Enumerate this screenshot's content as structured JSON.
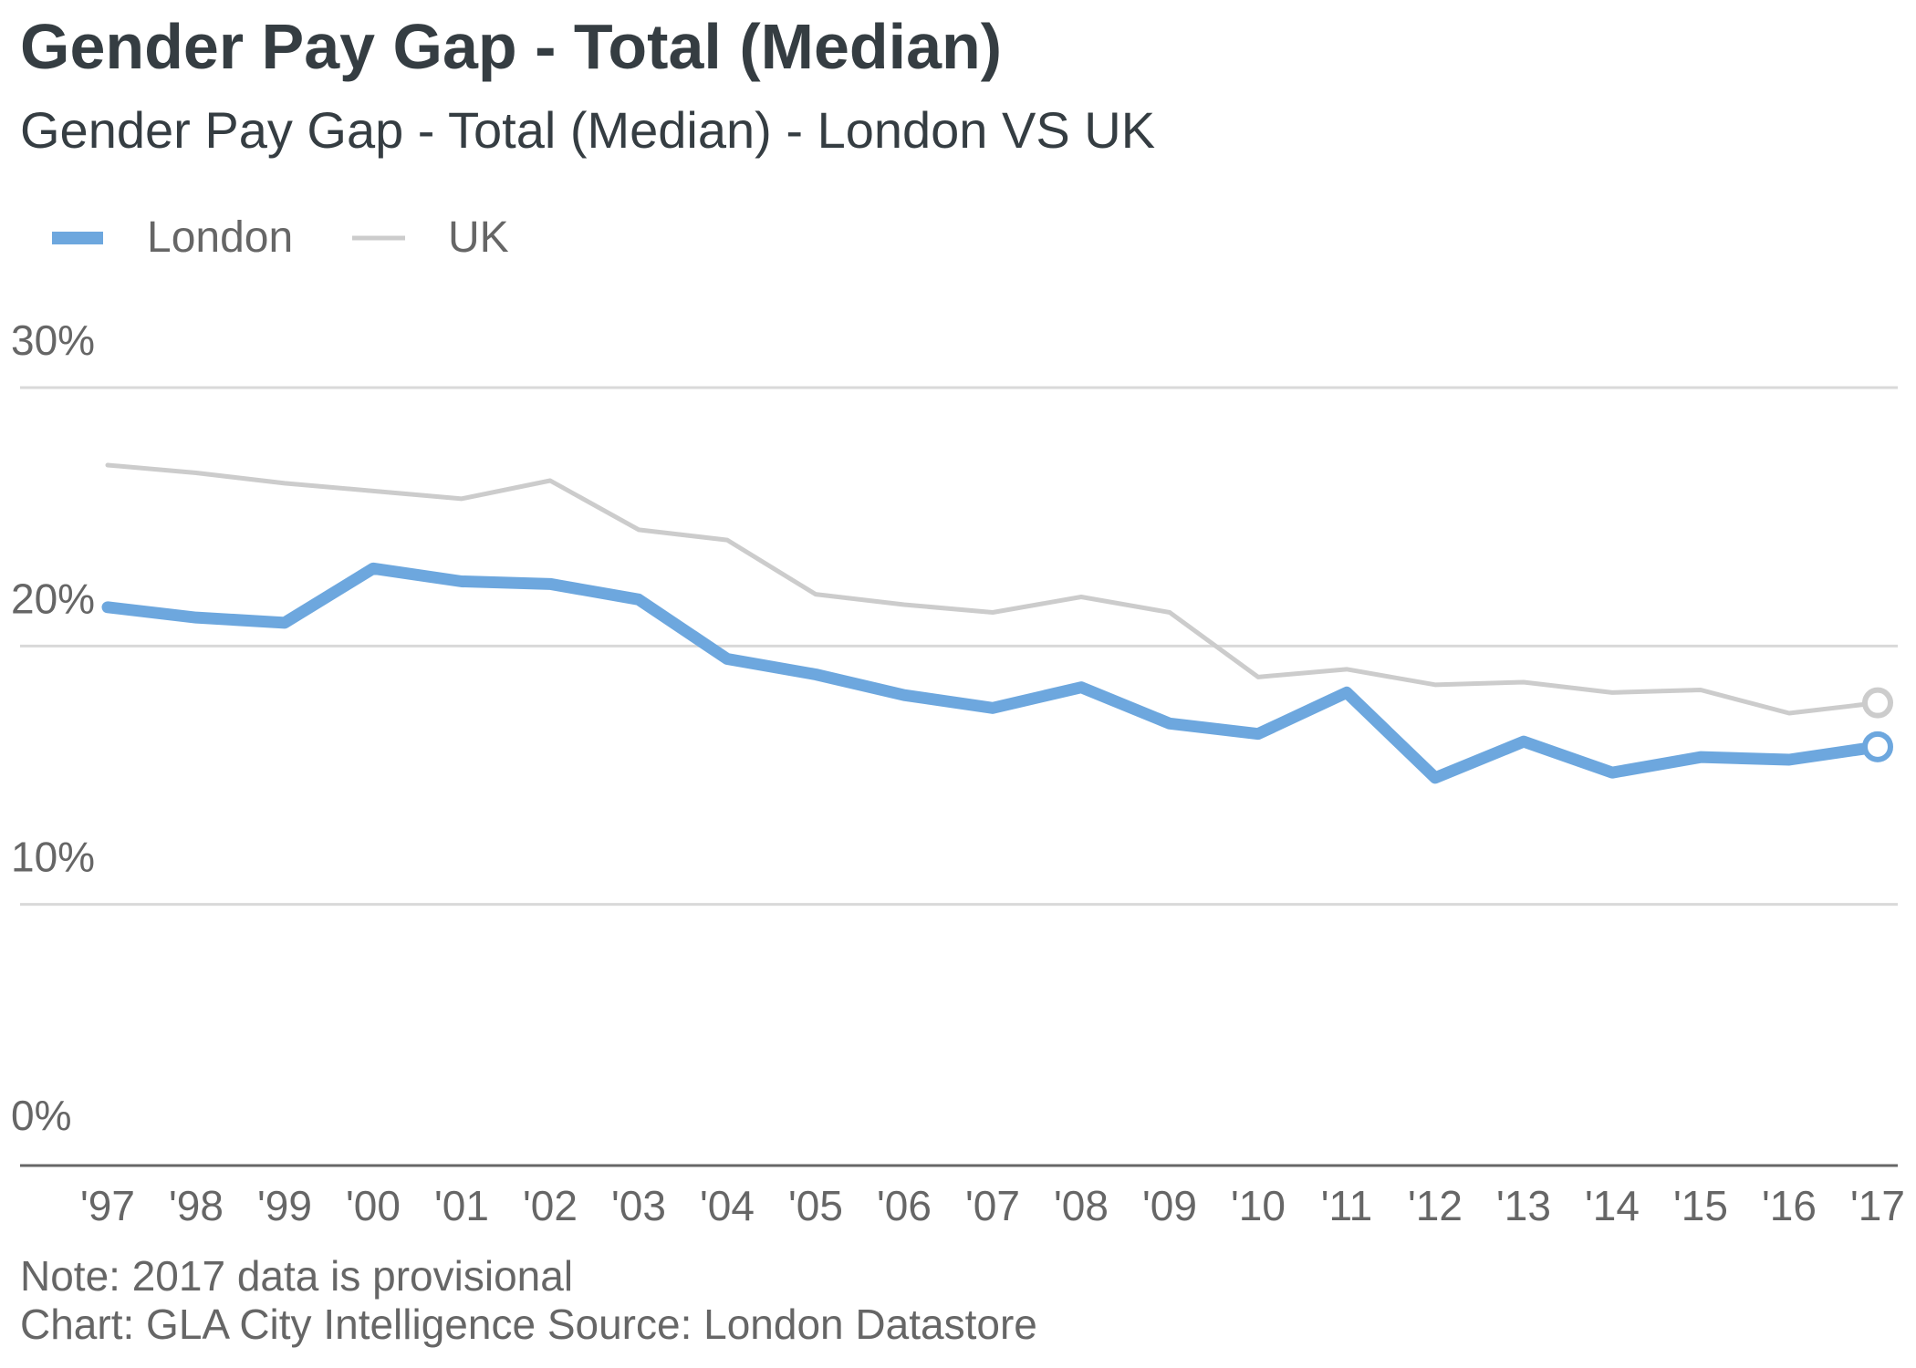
{
  "colors": {
    "london": "#6da7de",
    "uk": "#cccccc",
    "text_dark": "#353d42",
    "text_muted": "#666666"
  },
  "chart_data": {
    "type": "line",
    "title": "Gender Pay Gap - Total (Median)",
    "subtitle": "Gender Pay Gap - Total (Median) - London VS UK",
    "xlabel": "",
    "ylabel": "",
    "categories": [
      "'97",
      "'98",
      "'99",
      "'00",
      "'01",
      "'02",
      "'03",
      "'04",
      "'05",
      "'06",
      "'07",
      "'08",
      "'09",
      "'10",
      "'11",
      "'12",
      "'13",
      "'14",
      "'15",
      "'16",
      "'17"
    ],
    "series": [
      {
        "name": "London",
        "values": [
          21.5,
          21.1,
          20.9,
          23.0,
          22.5,
          22.4,
          21.8,
          19.5,
          18.9,
          18.1,
          17.6,
          18.4,
          17.0,
          16.6,
          18.2,
          14.9,
          16.3,
          15.1,
          15.7,
          15.6,
          16.1
        ]
      },
      {
        "name": "UK",
        "values": [
          27.0,
          26.7,
          26.3,
          26.0,
          25.7,
          26.4,
          24.5,
          24.1,
          22.0,
          21.6,
          21.3,
          21.9,
          21.3,
          18.8,
          19.1,
          18.5,
          18.6,
          18.2,
          18.3,
          17.4,
          17.8
        ]
      }
    ],
    "ylim": [
      0,
      30
    ],
    "yticks": [
      0,
      10,
      20,
      30
    ],
    "ytick_labels": [
      "0%",
      "10%",
      "20%",
      "30%"
    ],
    "grid": true,
    "legend": [
      "London",
      "UK"
    ],
    "legend_position": "top-left",
    "annotations": [
      "Final 2017 values marked with open circles"
    ]
  },
  "footer": {
    "note": "Note: 2017 data is provisional",
    "credit": "Chart: GLA City Intelligence  Source: London Datastore"
  }
}
